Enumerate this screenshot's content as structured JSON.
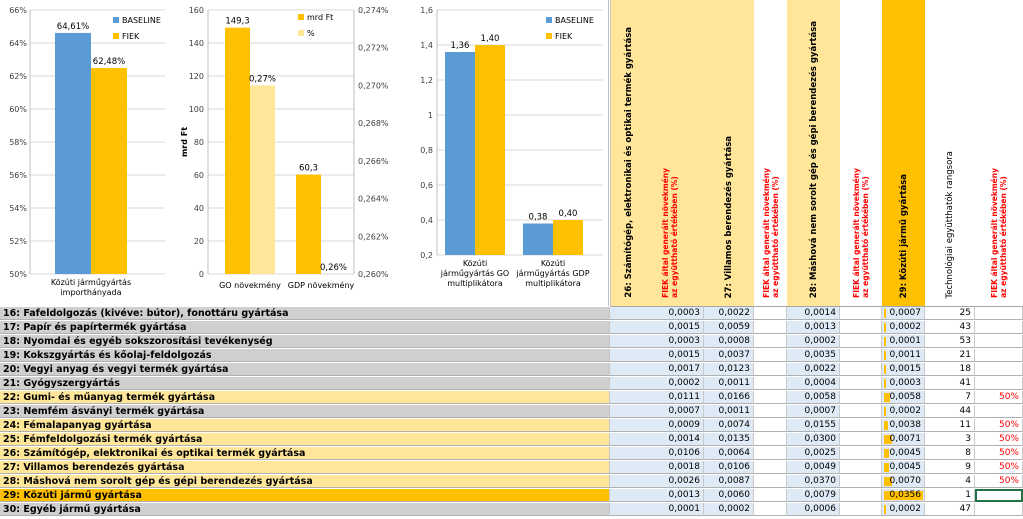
{
  "chart1": {
    "yticks": [
      "66%",
      "64%",
      "62%",
      "60%",
      "58%",
      "56%",
      "54%",
      "52%",
      "50%"
    ],
    "ylim": [
      50,
      66
    ],
    "categories": [
      "Közúti járműgyártás importhányada"
    ],
    "cat_lines": [
      "Közúti járműgyártás",
      "importhányada"
    ],
    "series": [
      {
        "name": "BASELINE",
        "color": "#5b9bd5",
        "values": [
          64.61
        ],
        "labels": [
          "64,61%"
        ]
      },
      {
        "name": "FIEK",
        "color": "#ffc000",
        "values": [
          62.48
        ],
        "labels": [
          "62,48%"
        ]
      }
    ]
  },
  "chart2": {
    "ylabel": "mrd Ft",
    "yticks_left": [
      "160",
      "140",
      "120",
      "100",
      "80",
      "60",
      "40",
      "20",
      "0"
    ],
    "yticks_right": [
      "0,274%",
      "0,272%",
      "0,270%",
      "0,268%",
      "0,266%",
      "0,264%",
      "0,262%",
      "0,260%"
    ],
    "ylim_left": [
      0,
      160
    ],
    "ylim_right": [
      0.26,
      0.274
    ],
    "categories": [
      "GO növekmény",
      "GDP növekmény"
    ],
    "series": [
      {
        "name": "mrd Ft",
        "color": "#ffc000",
        "values": [
          149.3,
          60.3
        ],
        "labels": [
          "149,3",
          "60,3"
        ]
      },
      {
        "name": "%",
        "color": "#ffe699",
        "values": [
          0.27,
          0.26
        ],
        "labels": [
          "0,27%",
          "0,26%"
        ]
      }
    ]
  },
  "chart3": {
    "yticks": [
      "1,6",
      "1,4",
      "1,2",
      "1",
      "0,8",
      "0,6",
      "0,4",
      "0,2"
    ],
    "ylim": [
      0.2,
      1.6
    ],
    "categories": [
      "Közúti járműgyártás GO multiplikátora",
      "Közúti járműgyártás GDP multiplikátora"
    ],
    "cat_lines": [
      [
        "Közúti",
        "járműgyártás GO",
        "multiplikátora"
      ],
      [
        "Közúti",
        "járműgyártás GDP",
        "multiplikátora"
      ]
    ],
    "series": [
      {
        "name": "BASELINE",
        "color": "#5b9bd5",
        "values": [
          1.36,
          0.38
        ],
        "labels": [
          "1,36",
          "0,38"
        ]
      },
      {
        "name": "FIEK",
        "color": "#ffc000",
        "values": [
          1.4,
          0.4
        ],
        "labels": [
          "1,40",
          "0,40"
        ]
      }
    ]
  },
  "headers": {
    "h26": "26: Számítógép, elektronikai és optikai termék gyártása",
    "h27": "27: Villamos berendezés gyártása",
    "h28": "28: Máshová nem sorolt gép és gépi berendezés gyártása",
    "h29": "29: Közúti jármű gyártása",
    "fiek": "FIEK által generált növekmény\naz együttható értékében (%)",
    "rank": "Technológiai együtthatók rangsora"
  },
  "rows": [
    {
      "name": "16: Fafeldolgozás (kivéve: bútor), fonottáru gyártása",
      "c26": "0,0003",
      "c27": "0,0022",
      "c28": "0,0014",
      "c29": "0,0007",
      "rank": "25",
      "pct": "",
      "hl": "grey"
    },
    {
      "name": "17: Papír és papírtermék gyártása",
      "c26": "0,0015",
      "c27": "0,0059",
      "c28": "0,0013",
      "c29": "0,0002",
      "rank": "43",
      "pct": "",
      "hl": "grey"
    },
    {
      "name": "18: Nyomdai és egyéb sokszorosítási tevékenység",
      "c26": "0,0003",
      "c27": "0,0008",
      "c28": "0,0002",
      "c29": "0,0001",
      "rank": "53",
      "pct": "",
      "hl": "grey"
    },
    {
      "name": "19: Kokszgyártás és kőolaj-feldolgozás",
      "c26": "0,0015",
      "c27": "0,0037",
      "c28": "0,0035",
      "c29": "0,0011",
      "rank": "21",
      "pct": "",
      "hl": "grey"
    },
    {
      "name": "20: Vegyi anyag és vegyi termék gyártása",
      "c26": "0,0017",
      "c27": "0,0123",
      "c28": "0,0022",
      "c29": "0,0015",
      "rank": "18",
      "pct": "",
      "hl": "grey"
    },
    {
      "name": "21: Gyógyszergyártás",
      "c26": "0,0002",
      "c27": "0,0011",
      "c28": "0,0004",
      "c29": "0,0003",
      "rank": "41",
      "pct": "",
      "hl": "grey"
    },
    {
      "name": "22: Gumi- és műanyag termék gyártása",
      "c26": "0,0111",
      "c27": "0,0166",
      "c28": "0,0058",
      "c29": "0,0058",
      "rank": "7",
      "pct": "50%",
      "hl": "tan"
    },
    {
      "name": "23: Nemfém ásványi termék gyártása",
      "c26": "0,0007",
      "c27": "0,0011",
      "c28": "0,0007",
      "c29": "0,0002",
      "rank": "44",
      "pct": "",
      "hl": "grey"
    },
    {
      "name": "24: Fémalapanyag gyártása",
      "c26": "0,0009",
      "c27": "0,0074",
      "c28": "0,0155",
      "c29": "0,0038",
      "rank": "11",
      "pct": "50%",
      "hl": "tan"
    },
    {
      "name": "25: Fémfeldolgozási termék gyártása",
      "c26": "0,0014",
      "c27": "0,0135",
      "c28": "0,0300",
      "c29": "0,0071",
      "rank": "3",
      "pct": "50%",
      "hl": "tan"
    },
    {
      "name": "26: Számítógép, elektronikai és optikai termék gyártása",
      "c26": "0,0106",
      "c27": "0,0064",
      "c28": "0,0025",
      "c29": "0,0045",
      "rank": "8",
      "pct": "50%",
      "hl": "tan"
    },
    {
      "name": "27: Villamos berendezés gyártása",
      "c26": "0,0018",
      "c27": "0,0106",
      "c28": "0,0049",
      "c29": "0,0045",
      "rank": "9",
      "pct": "50%",
      "hl": "tan"
    },
    {
      "name": "28: Máshová nem sorolt gép és gépi berendezés gyártása",
      "c26": "0,0026",
      "c27": "0,0087",
      "c28": "0,0370",
      "c29": "0,0070",
      "rank": "4",
      "pct": "50%",
      "hl": "tan"
    },
    {
      "name": "29: Közúti jármű gyártása",
      "c26": "0,0013",
      "c27": "0,0060",
      "c28": "0,0079",
      "c29": "0,0356",
      "rank": "1",
      "pct": "",
      "hl": "orange"
    },
    {
      "name": "30: Egyéb jármű gyártása",
      "c26": "0,0001",
      "c27": "0,0002",
      "c28": "0,0006",
      "c29": "0,0002",
      "rank": "47",
      "pct": "",
      "hl": "grey"
    }
  ],
  "c29_max": 0.0356,
  "colors": {
    "grey": "#d0cece",
    "tan": "#ffe699",
    "orange": "#ffc000",
    "blue_cell": "#deebf7",
    "red_text": "#ff0000",
    "rank_bar": "#ffc000"
  }
}
